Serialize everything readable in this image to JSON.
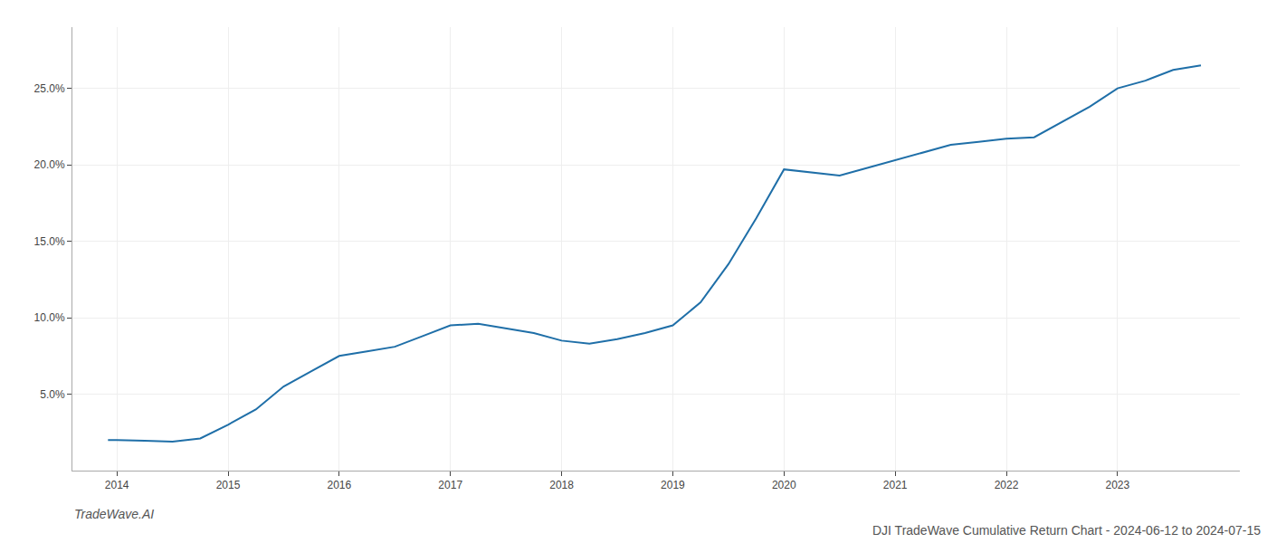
{
  "chart_data": {
    "type": "line",
    "title": "DJI TradeWave Cumulative Return Chart - 2024-06-12 to 2024-07-15",
    "annotations": [
      "TradeWave.AI"
    ],
    "x": [
      2013.92,
      2014.0,
      2014.25,
      2014.5,
      2014.75,
      2015.0,
      2015.25,
      2015.5,
      2015.75,
      2016.0,
      2016.25,
      2016.5,
      2016.75,
      2017.0,
      2017.25,
      2017.5,
      2017.75,
      2018.0,
      2018.25,
      2018.5,
      2018.75,
      2019.0,
      2019.25,
      2019.5,
      2019.75,
      2020.0,
      2020.25,
      2020.5,
      2020.75,
      2021.0,
      2021.25,
      2021.5,
      2021.75,
      2022.0,
      2022.25,
      2022.5,
      2022.75,
      2023.0,
      2023.25,
      2023.5,
      2023.75
    ],
    "values": [
      2.0,
      2.0,
      1.95,
      1.9,
      2.1,
      3.0,
      4.0,
      5.5,
      6.5,
      7.5,
      7.8,
      8.1,
      8.8,
      9.5,
      9.6,
      9.3,
      9.0,
      8.5,
      8.3,
      8.6,
      9.0,
      9.5,
      11.0,
      13.5,
      16.5,
      19.7,
      19.5,
      19.3,
      19.8,
      20.3,
      20.8,
      21.3,
      21.5,
      21.7,
      21.8,
      22.8,
      23.8,
      25.0,
      25.5,
      26.2,
      26.5
    ],
    "color": "#1f6fa8",
    "xlim": [
      2013.6,
      2024.1
    ],
    "xticks": [
      2014,
      2015,
      2016,
      2017,
      2018,
      2019,
      2020,
      2021,
      2022,
      2023
    ],
    "ylim": [
      0.0,
      29.0
    ],
    "yticks": [
      {
        "value": 5.0,
        "label": "5.0%"
      },
      {
        "value": 10.0,
        "label": "10.0%"
      },
      {
        "value": 15.0,
        "label": "15.0%"
      },
      {
        "value": 20.0,
        "label": "20.0%"
      },
      {
        "value": 25.0,
        "label": "25.0%"
      }
    ],
    "grid": true
  }
}
